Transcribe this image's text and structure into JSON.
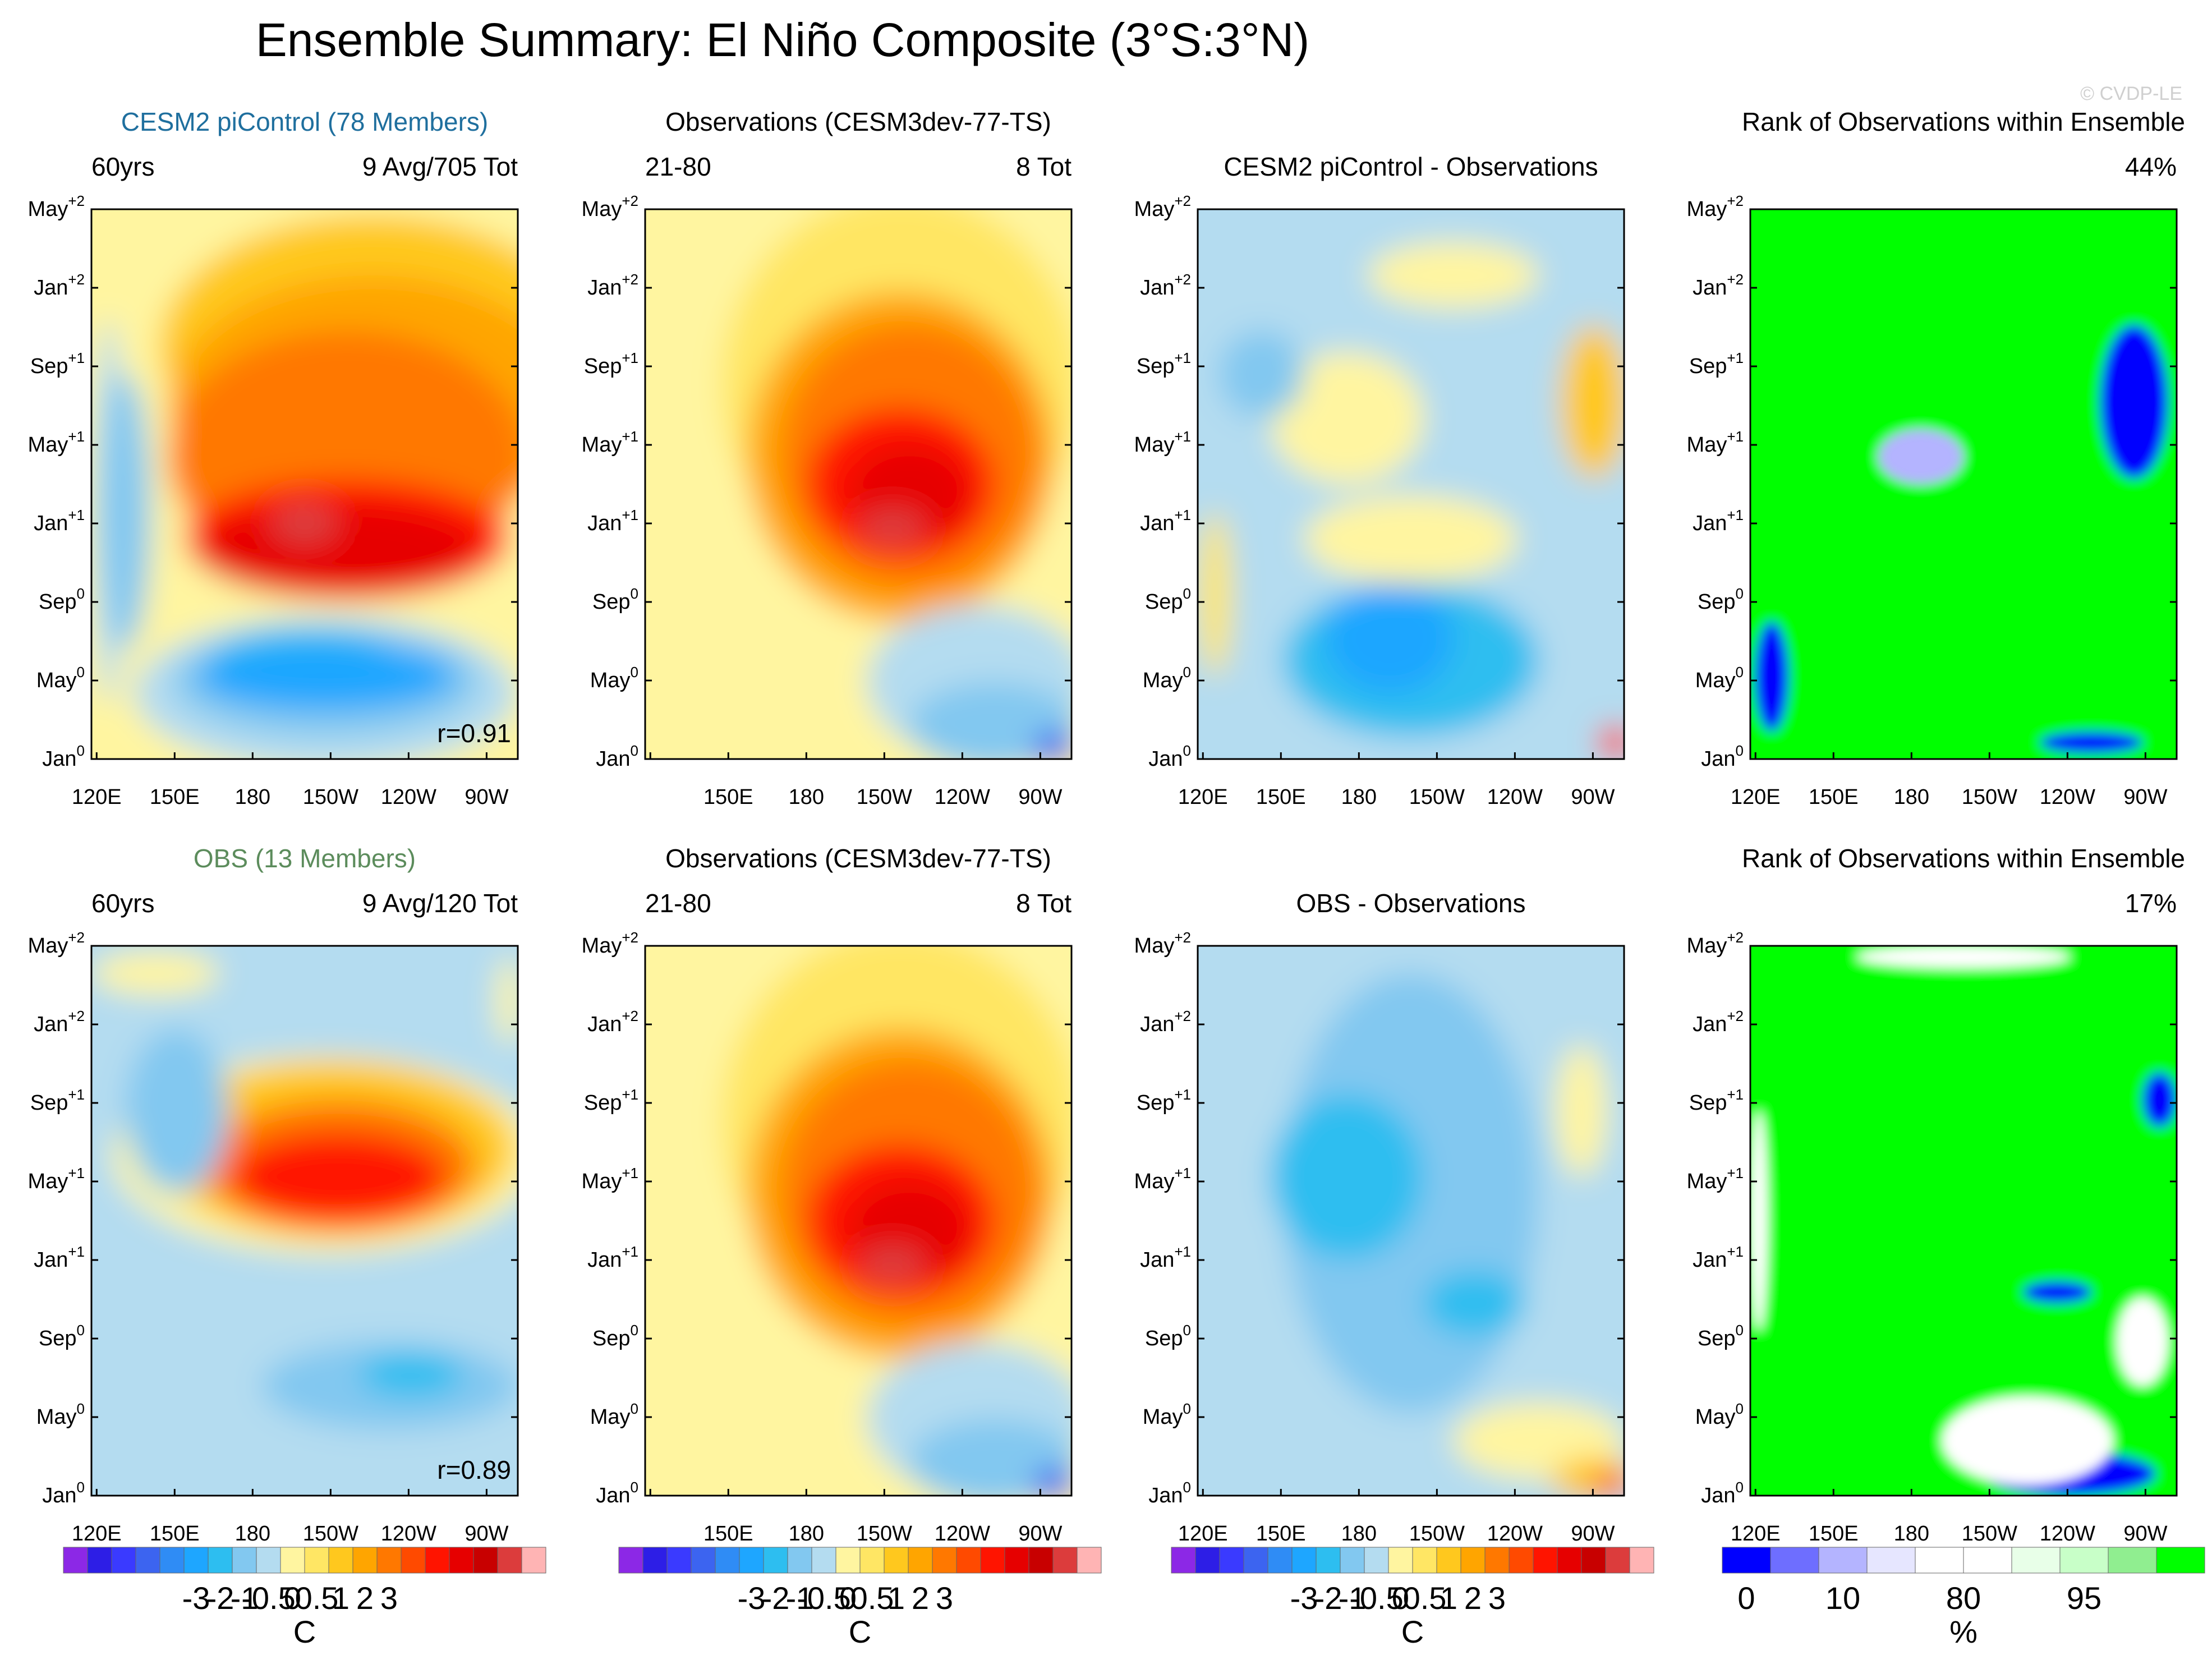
{
  "page": {
    "title": "Ensemble Summary: El Niño Composite (3°S:3°N)",
    "watermark": "© CVDP-LE"
  },
  "chart_data": {
    "type": "heatmap",
    "variable": "SST anomaly Hovmöller composite",
    "x_ticks": [
      "120E",
      "150E",
      "180",
      "150W",
      "120W",
      "90W"
    ],
    "x_ticks_short": [
      "150E",
      "180",
      "150W",
      "120W",
      "90W"
    ],
    "y_ticks": [
      "Jan0",
      "May0",
      "Sep0",
      "Jan+1",
      "May+1",
      "Sep+1",
      "Jan+2",
      "May+2"
    ],
    "y_ticks_display": [
      {
        "base": "Jan",
        "sup": "0"
      },
      {
        "base": "May",
        "sup": "0"
      },
      {
        "base": "Sep",
        "sup": "0"
      },
      {
        "base": "Jan",
        "sup": "+1"
      },
      {
        "base": "May",
        "sup": "+1"
      },
      {
        "base": "Sep",
        "sup": "+1"
      },
      {
        "base": "Jan",
        "sup": "+2"
      },
      {
        "base": "May",
        "sup": "+2"
      }
    ],
    "temp_levels": [
      "-3",
      "-2",
      "-1",
      "-0.5",
      "0",
      "0.5",
      "1",
      "2",
      "3"
    ],
    "temp_colors": [
      "#8c28e6",
      "#2d1ee6",
      "#3a3aff",
      "#3c64f0",
      "#2f8cf5",
      "#1ea6ff",
      "#2dbef0",
      "#82c8f0",
      "#b4dcf0",
      "#fff5a0",
      "#ffe664",
      "#ffc81e",
      "#ffa500",
      "#ff7800",
      "#ff4a00",
      "#ff1400",
      "#e60000",
      "#c80000",
      "#dc3c3c",
      "#ffb4b4"
    ],
    "temp_units": "C",
    "rank_levels": [
      "0",
      "10",
      "80",
      "95"
    ],
    "rank_colors": [
      "#0000ff",
      "#6e6eff",
      "#b4b4ff",
      "#e6e6ff",
      "#ffffff",
      "#ffffff",
      "#e8ffe8",
      "#c8ffc8",
      "#90ee90",
      "#00ff00"
    ],
    "rank_units": "%",
    "rows": [
      {
        "panels": [
          {
            "header": "CESM2 piControl (78 Members)",
            "header_color": "#1f6f9e",
            "left": "60yrs",
            "right": "9 Avg/705 Tot",
            "corr": "r=0.91",
            "kind": "model"
          },
          {
            "header": "Observations (CESM3dev-77-TS)",
            "left": "21-80",
            "right": "8 Tot",
            "kind": "obs"
          },
          {
            "header": "CESM2 piControl - Observations",
            "kind": "diff1"
          },
          {
            "header": "Rank of Observations within Ensemble",
            "right": "44%",
            "kind": "rank1"
          }
        ]
      },
      {
        "panels": [
          {
            "header": "OBS (13 Members)",
            "header_color": "#5c8c5c",
            "left": "60yrs",
            "right": "9 Avg/120 Tot",
            "corr": "r=0.89",
            "kind": "model2"
          },
          {
            "header": "Observations (CESM3dev-77-TS)",
            "left": "21-80",
            "right": "8 Tot",
            "kind": "obs"
          },
          {
            "header": "OBS - Observations",
            "kind": "diff2"
          },
          {
            "header": "Rank of Observations within Ensemble",
            "right": "17%",
            "kind": "rank2"
          }
        ]
      }
    ]
  }
}
